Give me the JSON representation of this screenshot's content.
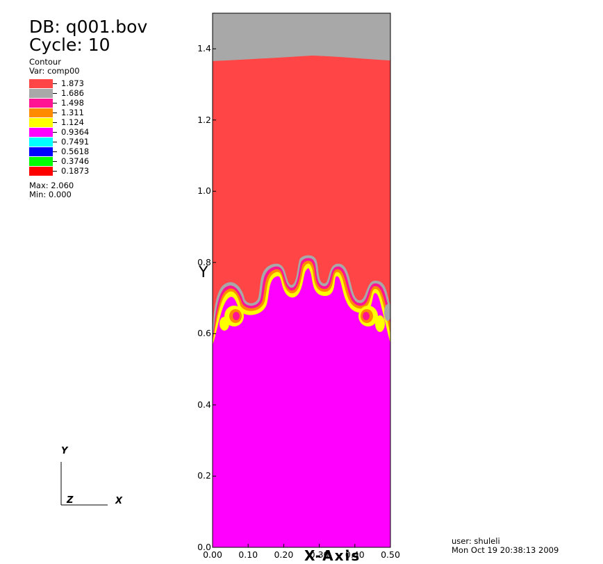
{
  "header": {
    "db_line": "DB: q001.bov",
    "cycle_line": "Cycle: 10"
  },
  "legend": {
    "plot_type": "Contour",
    "var_line": "Var: comp00",
    "levels": [
      {
        "value": "1.873",
        "color": "#ff4545"
      },
      {
        "value": "1.686",
        "color": "#a8a8a8"
      },
      {
        "value": "1.498",
        "color": "#ff1493"
      },
      {
        "value": "1.311",
        "color": "#ff8c00"
      },
      {
        "value": "1.124",
        "color": "#ffff00"
      },
      {
        "value": "0.9364",
        "color": "#ff00ff"
      },
      {
        "value": "0.7491",
        "color": "#00ffff"
      },
      {
        "value": "0.5618",
        "color": "#0000ff"
      },
      {
        "value": "0.3746",
        "color": "#00ff00"
      },
      {
        "value": "0.1873",
        "color": "#ff0000"
      }
    ],
    "max_line": "Max: 2.060",
    "min_line": "Min: 0.000"
  },
  "triad": {
    "y": "Y",
    "z": "Z",
    "x": "X"
  },
  "footer": {
    "user_line": "user: shuleli",
    "date_line": "Mon Oct 19 20:38:13 2009"
  },
  "chart_data": {
    "type": "heatmap",
    "xlabel": "X-Axis",
    "ylabel": "Y",
    "xlim": [
      0.0,
      0.5
    ],
    "ylim": [
      0.0,
      1.5
    ],
    "x_ticks": [
      "0.00",
      "0.10",
      "0.20",
      "0.30",
      "0.40",
      "0.50"
    ],
    "y_ticks": [
      "0.0",
      "0.2",
      "0.4",
      "0.6",
      "0.8",
      "1.0",
      "1.2",
      "1.4"
    ],
    "regions": [
      {
        "level": "1.686",
        "description_value_range": "top band, y > ~1.37"
      },
      {
        "level": "1.873",
        "description_value_range": "upper fluid, y ~0.59 to ~1.37"
      },
      {
        "level": "0.9364",
        "description_value_range": "lower fluid, y < ~0.6 with fingers up to ~0.79"
      }
    ],
    "interface_y_min": 0.59,
    "interface_y_max": 0.79,
    "top_boundary_y": 1.37
  }
}
